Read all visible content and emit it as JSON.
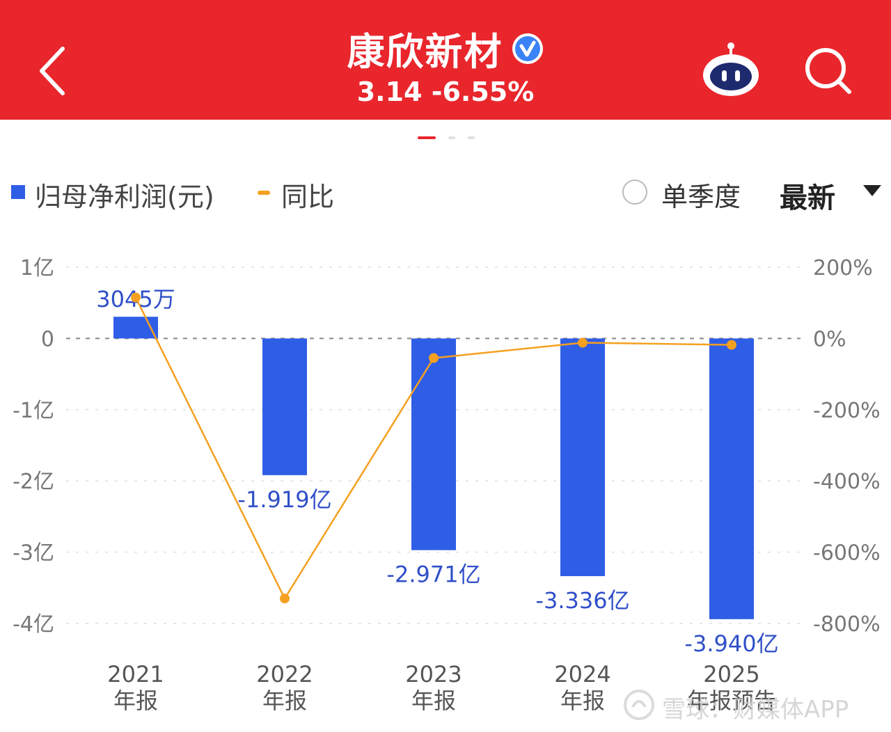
{
  "header": {
    "title": "康欣新材",
    "subtitle": "3.14 -6.55%",
    "bg_color": "#e8262c",
    "icons": {
      "back": "chevron-left-icon",
      "verified": "verified-badge-icon",
      "assistant": "robot-icon",
      "search": "search-icon"
    }
  },
  "legend": {
    "bar_label": "归母净利润(元)",
    "line_label": "同比",
    "bar_color": "#2f5ee6",
    "line_color": "#f5a020"
  },
  "controls": {
    "single_quarter_label": "单季度",
    "single_quarter_checked": false,
    "period_select_value": "最新"
  },
  "chart_data": {
    "type": "bar",
    "categories": [
      "2021年报",
      "2022年报",
      "2023年报",
      "2024年报",
      "2025年报预告"
    ],
    "category_lines": [
      [
        "2021",
        "年报"
      ],
      [
        "2022",
        "年报"
      ],
      [
        "2023",
        "年报"
      ],
      [
        "2024",
        "年报"
      ],
      [
        "2025",
        "年报预告"
      ]
    ],
    "series": [
      {
        "name": "归母净利润(元)",
        "axis": "left",
        "unit": "亿",
        "values": [
          0.3045,
          -1.919,
          -2.971,
          -3.336,
          -3.94
        ],
        "labels": [
          "3045万",
          "-1.919亿",
          "-2.971亿",
          "-3.336亿",
          "-3.940亿"
        ],
        "color": "#2f5ee6"
      },
      {
        "name": "同比",
        "type": "line",
        "axis": "right",
        "unit": "%",
        "values": [
          115,
          -730,
          -55,
          -12,
          -18
        ],
        "color": "#f5a020"
      }
    ],
    "left_axis": {
      "ylim": [
        -4,
        1
      ],
      "ticks": [
        1,
        0,
        -1,
        -2,
        -3,
        -4
      ],
      "tick_labels": [
        "1亿",
        "0",
        "-1亿",
        "-2亿",
        "-3亿",
        "-4亿"
      ]
    },
    "right_axis": {
      "ylim": [
        -800,
        200
      ],
      "tick_labels": [
        "200%",
        "0%",
        "-200%",
        "-400%",
        "-600%",
        "-800%"
      ]
    },
    "grid": true
  },
  "watermark": {
    "text": "雪球：财媒体APP",
    "icon": "xueqiu-logo-icon"
  }
}
